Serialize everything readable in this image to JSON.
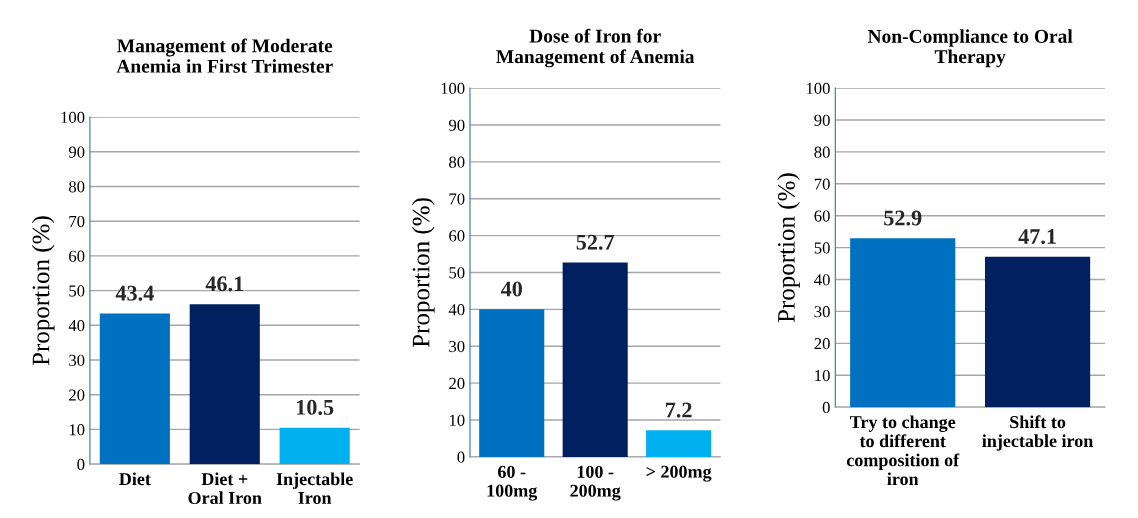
{
  "chart_data": [
    {
      "type": "bar",
      "title": "Management of Moderate\nAnemia in First Trimester",
      "ylabel": "Proportion (%)",
      "categories": [
        "Diet",
        "Diet +\nOral Iron",
        "Injectable\nIron"
      ],
      "values": [
        43.4,
        46.1,
        10.5
      ],
      "colors": [
        "#0070c0",
        "#002060",
        "#00b0f0"
      ],
      "ylim": [
        0,
        100
      ],
      "yticks": [
        0,
        10,
        20,
        30,
        40,
        50,
        60,
        70,
        80,
        90,
        100
      ],
      "grid": "y",
      "data_labels": true
    },
    {
      "type": "bar",
      "title": "Dose of Iron for\nManagement of Anemia",
      "ylabel": "Proportion (%)",
      "categories": [
        "60 -\n100mg",
        "100 -\n200mg",
        "> 200mg"
      ],
      "values": [
        40,
        52.7,
        7.2
      ],
      "colors": [
        "#0070c0",
        "#002060",
        "#00b0f0"
      ],
      "ylim": [
        0,
        100
      ],
      "yticks": [
        0,
        10,
        20,
        30,
        40,
        50,
        60,
        70,
        80,
        90,
        100
      ],
      "grid": "y",
      "data_labels": true
    },
    {
      "type": "bar",
      "title": "Non-Compliance to Oral\nTherapy",
      "ylabel": "Proportion (%)",
      "categories": [
        "Try to change\nto different\ncomposition of\niron",
        "Shift to\ninjectable iron"
      ],
      "values": [
        52.9,
        47.1
      ],
      "colors": [
        "#0070c0",
        "#002060"
      ],
      "ylim": [
        0,
        100
      ],
      "yticks": [
        0,
        10,
        20,
        30,
        40,
        50,
        60,
        70,
        80,
        90,
        100
      ],
      "grid": "y",
      "data_labels": true
    }
  ]
}
